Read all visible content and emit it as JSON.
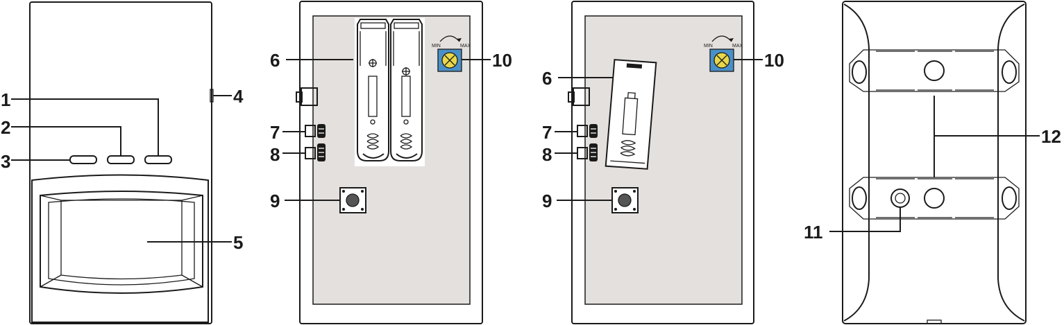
{
  "callouts": {
    "c1": "1",
    "c2": "2",
    "c3": "3",
    "c4": "4",
    "c5": "5",
    "c6": "6",
    "c7": "7",
    "c8": "8",
    "c9": "9",
    "c10": "10",
    "c11": "11",
    "c12": "12"
  },
  "knob": {
    "min": "MIN",
    "max": "MAX"
  },
  "colors": {
    "line": "#1a1a1a",
    "panel": "#e4e0de",
    "knob": "#4a90c8",
    "knob_inner": "#e8d84a"
  }
}
